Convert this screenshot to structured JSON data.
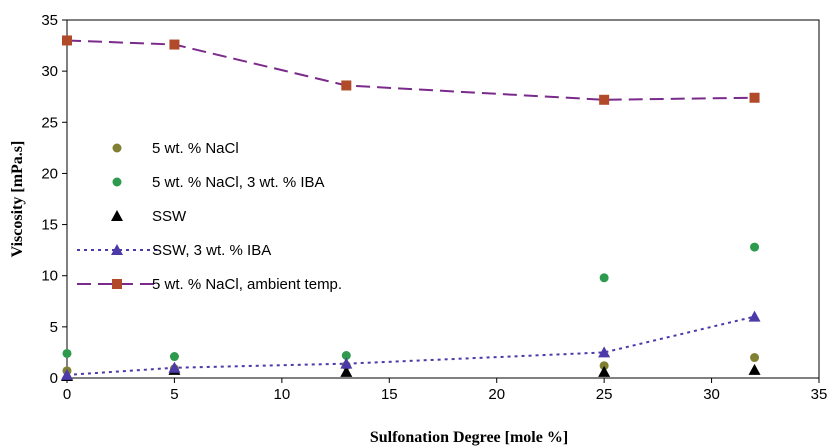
{
  "chart_data": {
    "type": "scatter",
    "title": "",
    "xlabel": "Sulfonation Degree [mole %]",
    "ylabel": "Viscosity [mPa.s]",
    "xlim": [
      0,
      35
    ],
    "ylim": [
      0,
      35
    ],
    "x_ticks": [
      "0",
      "5",
      "10",
      "15",
      "20",
      "25",
      "30",
      "35"
    ],
    "y_ticks": [
      "0",
      "5",
      "10",
      "15",
      "20",
      "25",
      "30",
      "35"
    ],
    "grid": false,
    "legend_position": "center-left",
    "series": [
      {
        "name": " 5 wt. % NaCl",
        "marker": "circle",
        "line": "none",
        "color": "#808033",
        "x": [
          0,
          5,
          13,
          25,
          32
        ],
        "y": [
          0.7,
          0.9,
          1.2,
          1.2,
          2.0
        ]
      },
      {
        "name": "5 wt. % NaCl, 3 wt. % IBA",
        "marker": "circle",
        "line": "none",
        "color": "#2e9a4e",
        "x": [
          0,
          5,
          13,
          25,
          32
        ],
        "y": [
          2.4,
          2.1,
          2.2,
          9.8,
          12.8
        ]
      },
      {
        "name": "SSW",
        "marker": "triangle",
        "line": "none",
        "color": "#000000",
        "x": [
          0,
          5,
          13,
          25,
          32
        ],
        "y": [
          0.2,
          0.8,
          0.6,
          0.6,
          0.8
        ]
      },
      {
        "name": "SSW, 3 wt. % IBA",
        "marker": "triangle",
        "line": "dotted",
        "color": "#4b3aa8",
        "x": [
          0,
          5,
          13,
          25,
          32
        ],
        "y": [
          0.3,
          1.0,
          1.4,
          2.5,
          6.0
        ]
      },
      {
        "name": "5 wt. % NaCl, ambient temp.",
        "marker": "square",
        "line": "dashed",
        "line_color": "#7a2a8a",
        "color": "#b04a28",
        "x": [
          0,
          5,
          13,
          25,
          32
        ],
        "y": [
          33.0,
          32.6,
          28.6,
          27.2,
          27.4
        ]
      }
    ]
  }
}
